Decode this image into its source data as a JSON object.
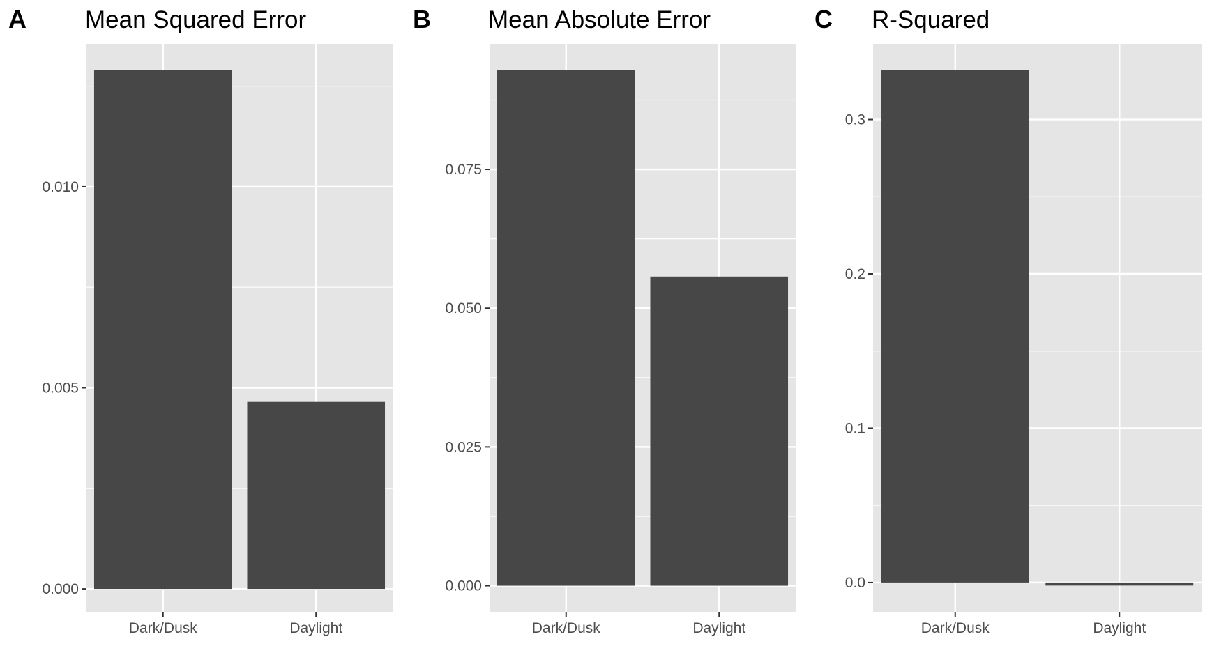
{
  "colors": {
    "panel_background": "#e5e5e5",
    "grid_line": "#ffffff",
    "bar_fill": "#474747",
    "tick_mark": "#333333",
    "tick_text": "#4d4d4d",
    "title_text": "#000000"
  },
  "chart_data": [
    {
      "type": "bar",
      "tag": "A",
      "title": "Mean Squared Error",
      "xlabel": "",
      "ylabel": "",
      "categories": [
        "Dark/Dusk",
        "Daylight"
      ],
      "values": [
        0.0129,
        0.00465
      ],
      "ylim": [
        -0.00057,
        0.01355
      ],
      "yticks": [
        0.0,
        0.005,
        0.01
      ],
      "ytick_labels": [
        "0.000",
        "0.005",
        "0.010"
      ],
      "grid": true
    },
    {
      "type": "bar",
      "tag": "B",
      "title": "Mean Absolute Error",
      "xlabel": "",
      "ylabel": "",
      "categories": [
        "Dark/Dusk",
        "Daylight"
      ],
      "values": [
        0.0929,
        0.0557
      ],
      "ylim": [
        -0.0047,
        0.0976
      ],
      "yticks": [
        0.0,
        0.025,
        0.05,
        0.075
      ],
      "ytick_labels": [
        "0.000",
        "0.025",
        "0.050",
        "0.075"
      ],
      "grid": true
    },
    {
      "type": "bar",
      "tag": "C",
      "title": "R-Squared",
      "xlabel": "",
      "ylabel": "",
      "categories": [
        "Dark/Dusk",
        "Daylight"
      ],
      "values": [
        0.332,
        -0.002
      ],
      "ylim": [
        -0.019,
        0.349
      ],
      "yticks": [
        0.0,
        0.1,
        0.2,
        0.3
      ],
      "ytick_labels": [
        "0.0",
        "0.1",
        "0.2",
        "0.3"
      ],
      "grid": true
    }
  ]
}
